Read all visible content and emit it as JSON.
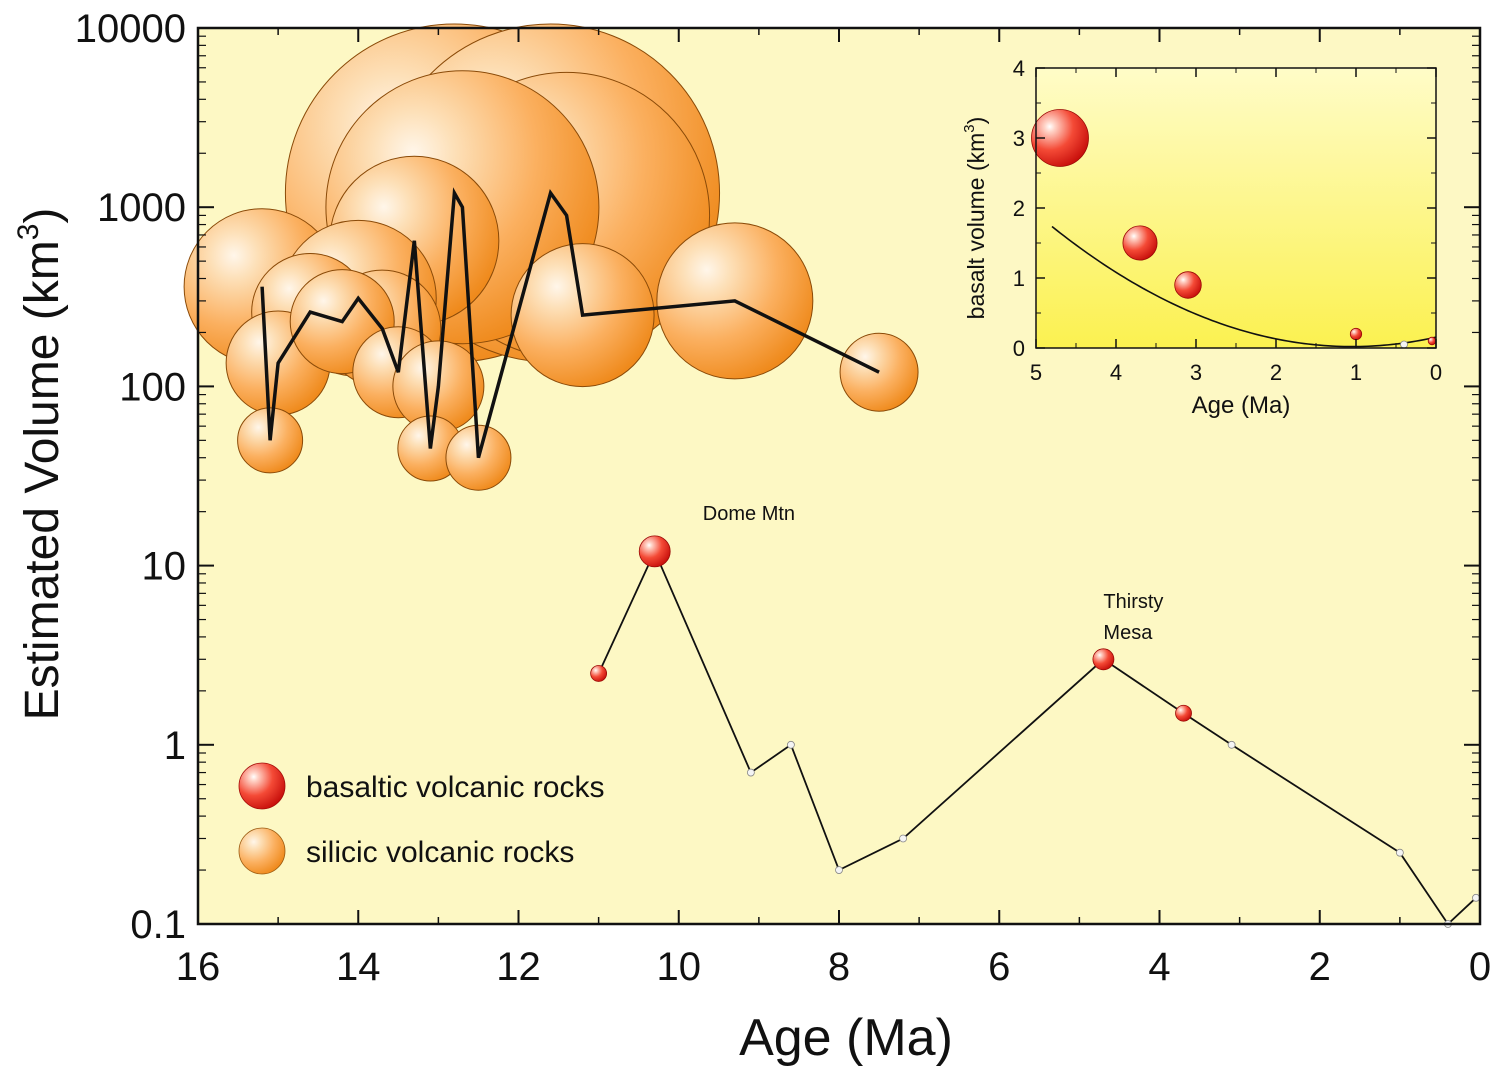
{
  "colors": {
    "plot_background": "#fdf8c4",
    "inset_background_top": "#fffbc0",
    "inset_background_bottom": "#fbf24a",
    "basalt_light": "#ffd4c8",
    "basalt_dark": "#e0100c",
    "silicic_light": "#fff0dc",
    "silicic_dark": "#f58a18",
    "line": "#111111",
    "small_marker": "#f4f4f4"
  },
  "chart_data": [
    {
      "type": "scatter",
      "ylabel_main": "Estimated Volume (km",
      "ylabel_sup": "3",
      "ylabel_end": ")",
      "xlabel": "Age (Ma)",
      "xlim": [
        16,
        0
      ],
      "ylim": [
        0.1,
        10000
      ],
      "yscale": "log",
      "x_ticks": [
        "16",
        "14",
        "12",
        "10",
        "8",
        "6",
        "4",
        "2",
        "0"
      ],
      "y_ticks": [
        "0.1",
        "1",
        "10",
        "100",
        "1000",
        "10000"
      ],
      "legend": {
        "placement": "lower-left",
        "entries": [
          {
            "label": "basaltic volcanic rocks",
            "marker": "basalt"
          },
          {
            "label": "silicic volcanic rocks",
            "marker": "silicic"
          }
        ]
      },
      "annotations": [
        {
          "text": "Dome Mtn",
          "x": 9.7,
          "y": 18
        },
        {
          "text": "Thirsty",
          "x": 4.7,
          "y": 5.8
        },
        {
          "text": "Mesa",
          "x": 4.7,
          "y": 3.9
        }
      ],
      "series": [
        {
          "marker": "silicic",
          "points": [
            {
              "x": 15.2,
              "y": 360,
              "size": 12
            },
            {
              "x": 15.1,
              "y": 50,
              "size": 5
            },
            {
              "x": 15.0,
              "y": 135,
              "size": 8
            },
            {
              "x": 14.6,
              "y": 260,
              "size": 9
            },
            {
              "x": 14.2,
              "y": 230,
              "size": 8
            },
            {
              "x": 14.0,
              "y": 310,
              "size": 12
            },
            {
              "x": 13.7,
              "y": 210,
              "size": 9
            },
            {
              "x": 13.5,
              "y": 120,
              "size": 7
            },
            {
              "x": 13.3,
              "y": 650,
              "size": 13
            },
            {
              "x": 13.1,
              "y": 45,
              "size": 5
            },
            {
              "x": 13.0,
              "y": 100,
              "size": 7
            },
            {
              "x": 12.8,
              "y": 1200,
              "size": 26
            },
            {
              "x": 12.7,
              "y": 1000,
              "size": 21
            },
            {
              "x": 12.5,
              "y": 40,
              "size": 5
            },
            {
              "x": 11.6,
              "y": 1200,
              "size": 26
            },
            {
              "x": 11.4,
              "y": 900,
              "size": 22
            },
            {
              "x": 11.2,
              "y": 250,
              "size": 11
            },
            {
              "x": 9.3,
              "y": 300,
              "size": 12
            },
            {
              "x": 7.5,
              "y": 120,
              "size": 6
            }
          ]
        },
        {
          "marker": "basalt",
          "points": [
            {
              "x": 11.0,
              "y": 2.5,
              "size": 1
            },
            {
              "x": 10.3,
              "y": 12,
              "size": 2.5
            },
            {
              "x": 9.1,
              "y": 0.7,
              "size": 0
            },
            {
              "x": 8.6,
              "y": 1.0,
              "size": 0
            },
            {
              "x": 8.0,
              "y": 0.2,
              "size": 0
            },
            {
              "x": 7.2,
              "y": 0.3,
              "size": 0
            },
            {
              "x": 4.7,
              "y": 3.0,
              "size": 1.5
            },
            {
              "x": 3.7,
              "y": 1.5,
              "size": 1
            },
            {
              "x": 3.1,
              "y": 1.0,
              "size": 0
            },
            {
              "x": 1.0,
              "y": 0.25,
              "size": 0
            },
            {
              "x": 0.4,
              "y": 0.1,
              "size": 0
            },
            {
              "x": 0.05,
              "y": 0.14,
              "size": 0
            }
          ]
        }
      ]
    },
    {
      "type": "scatter",
      "ylabel_main": "basalt volume (km",
      "ylabel_sup": "3",
      "ylabel_end": ")",
      "xlabel": "Age (Ma)",
      "xlim": [
        5,
        0
      ],
      "ylim": [
        0,
        4
      ],
      "x_ticks": [
        "5",
        "4",
        "3",
        "2",
        "1",
        "0"
      ],
      "y_ticks": [
        "0",
        "1",
        "2",
        "3",
        "4"
      ],
      "fit": "quadratic curve",
      "points": [
        {
          "x": 4.7,
          "y": 3.0,
          "size": 3
        },
        {
          "x": 3.7,
          "y": 1.5,
          "size": 1.8
        },
        {
          "x": 3.1,
          "y": 0.9,
          "size": 1.4
        },
        {
          "x": 1.0,
          "y": 0.2,
          "size": 0.6
        },
        {
          "x": 0.4,
          "y": 0.05,
          "size": 0
        },
        {
          "x": 0.05,
          "y": 0.1,
          "size": 0.4
        }
      ]
    }
  ]
}
